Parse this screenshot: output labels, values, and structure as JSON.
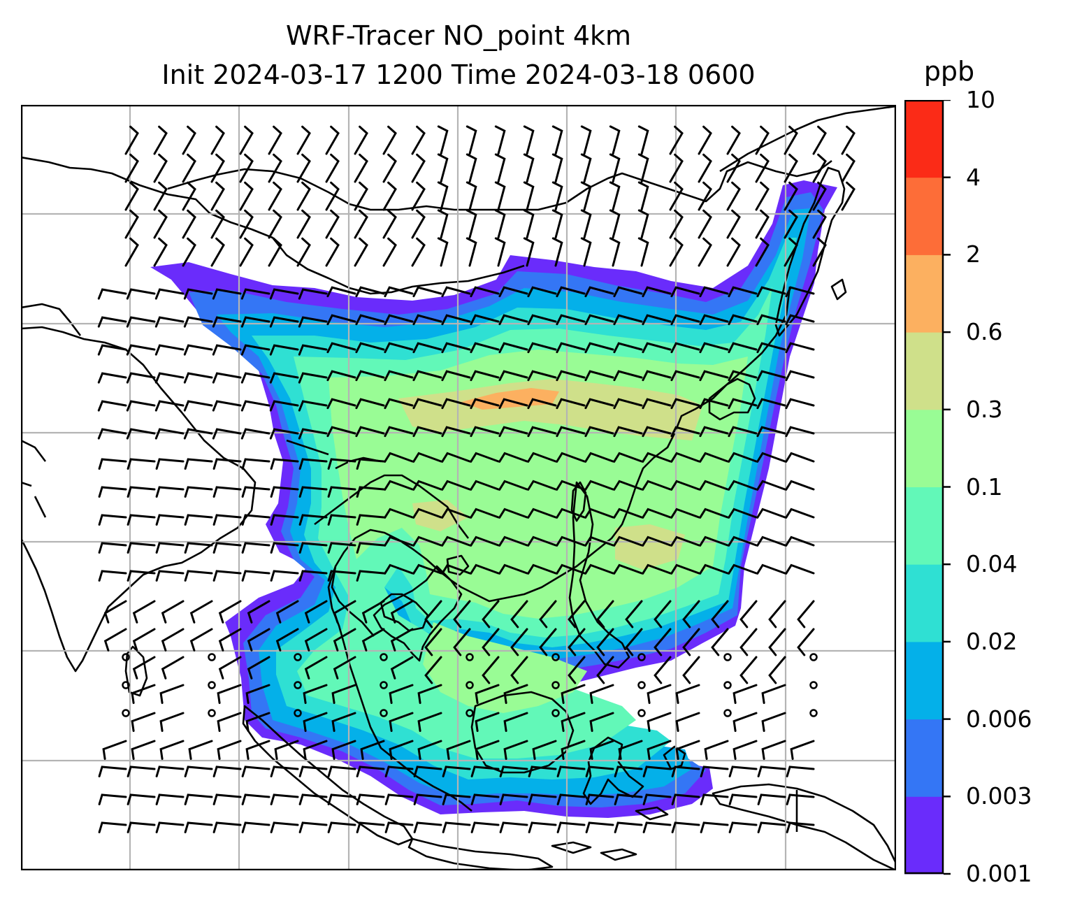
{
  "title": {
    "line1": "WRF-Tracer NO_point 4km",
    "line2": "Init 2024-03-17 1200 Time 2024-03-18 0600"
  },
  "colorbar": {
    "unit": "ppb",
    "levels": [
      "0.001",
      "0.003",
      "0.006",
      "0.02",
      "0.04",
      "0.1",
      "0.3",
      "0.6",
      "2",
      "4",
      "10"
    ],
    "colors": [
      "#6a2cfb",
      "#3476f5",
      "#04b0e9",
      "#2fe0d3",
      "#62f8b8",
      "#99fc95",
      "#cfe08a",
      "#fcb060",
      "#fd6d38",
      "#fb2b17"
    ]
  },
  "map": {
    "variable": "NO_point",
    "resolution": "4km",
    "overlays": [
      "concentration-fill",
      "coastlines",
      "gridlines",
      "wind-barbs"
    ]
  }
}
